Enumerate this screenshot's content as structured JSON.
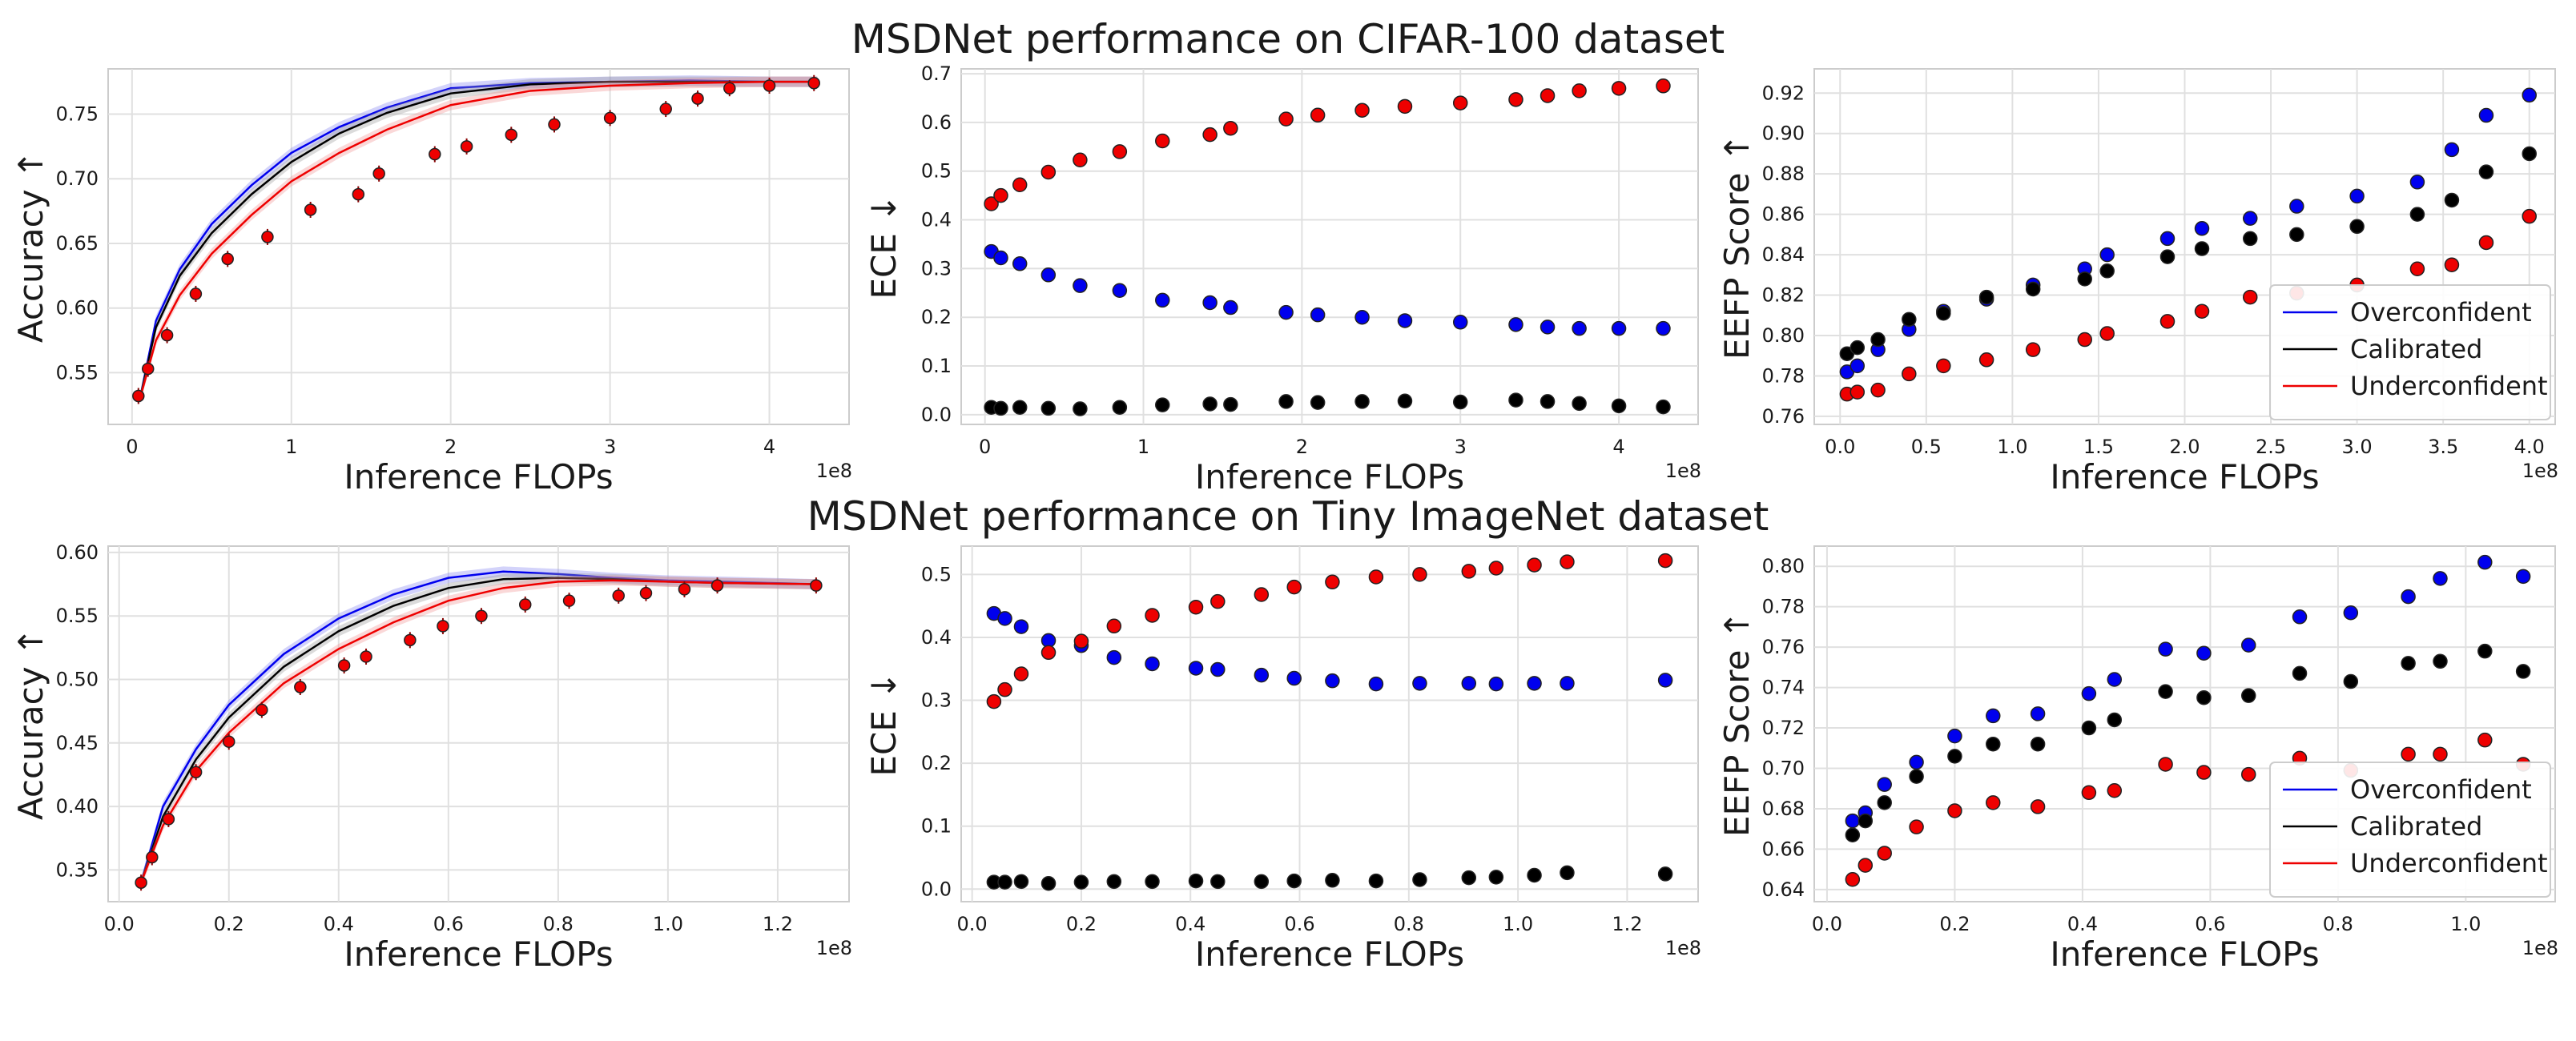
{
  "titles": {
    "row1": "MSDNet performance on CIFAR-100 dataset",
    "row2": "MSDNet performance on Tiny ImageNet dataset"
  },
  "legend": [
    "Overconfident",
    "Calibrated",
    "Underconfident"
  ],
  "colors": {
    "overconfident": "#0000ee",
    "calibrated": "#000000",
    "underconfident": "#ee0000",
    "grid": "#e0e0e0",
    "band_blue": "#8080f0",
    "band_red": "#f09090"
  },
  "chart_data": [
    {
      "id": "cifar_acc",
      "type": "line+scatter",
      "title": "",
      "xlabel": "Inference FLOPs",
      "ylabel": "Accuracy ↑",
      "x_offset_label": "1e8",
      "xlim": [
        -0.15,
        4.5
      ],
      "ylim": [
        0.51,
        0.785
      ],
      "xticks": [
        0,
        1,
        2,
        3,
        4
      ],
      "xtick_labels": [
        "0",
        "1",
        "2",
        "3",
        "4"
      ],
      "yticks": [
        0.55,
        0.6,
        0.65,
        0.7,
        0.75
      ],
      "ytick_labels": [
        "0.55",
        "0.60",
        "0.65",
        "0.70",
        "0.75"
      ],
      "lines": [
        {
          "name": "Overconfident",
          "x": [
            0.05,
            0.15,
            0.3,
            0.5,
            0.75,
            1.0,
            1.3,
            1.6,
            2.0,
            2.5,
            3.0,
            3.5,
            4.0,
            4.3
          ],
          "y": [
            0.53,
            0.59,
            0.63,
            0.665,
            0.695,
            0.72,
            0.74,
            0.755,
            0.77,
            0.774,
            0.775,
            0.776,
            0.775,
            0.775
          ]
        },
        {
          "name": "Calibrated",
          "x": [
            0.05,
            0.15,
            0.3,
            0.5,
            0.75,
            1.0,
            1.3,
            1.6,
            2.0,
            2.5,
            3.0,
            3.5,
            4.0,
            4.3
          ],
          "y": [
            0.53,
            0.585,
            0.625,
            0.658,
            0.688,
            0.713,
            0.735,
            0.751,
            0.766,
            0.773,
            0.775,
            0.775,
            0.775,
            0.775
          ]
        },
        {
          "name": "Underconfident",
          "x": [
            0.05,
            0.15,
            0.3,
            0.5,
            0.75,
            1.0,
            1.3,
            1.6,
            2.0,
            2.5,
            3.0,
            3.5,
            4.0,
            4.3
          ],
          "y": [
            0.53,
            0.575,
            0.61,
            0.642,
            0.672,
            0.698,
            0.72,
            0.738,
            0.757,
            0.768,
            0.772,
            0.774,
            0.775,
            0.775
          ]
        }
      ],
      "points": {
        "name": "Underconfident",
        "x": [
          0.04,
          0.1,
          0.22,
          0.4,
          0.6,
          0.85,
          1.12,
          1.42,
          1.55,
          1.9,
          2.1,
          2.38,
          2.65,
          3.0,
          3.35,
          3.55,
          3.75,
          4.0,
          4.28
        ],
        "y": [
          0.532,
          0.553,
          0.579,
          0.611,
          0.638,
          0.655,
          0.676,
          0.688,
          0.704,
          0.719,
          0.725,
          0.734,
          0.742,
          0.747,
          0.754,
          0.762,
          0.77,
          0.772,
          0.774
        ]
      }
    },
    {
      "id": "cifar_ece",
      "type": "scatter",
      "title": "",
      "xlabel": "Inference FLOPs",
      "ylabel": "ECE ↓",
      "x_offset_label": "1e8",
      "xlim": [
        -0.15,
        4.5
      ],
      "ylim": [
        -0.02,
        0.71
      ],
      "xticks": [
        0,
        1,
        2,
        3,
        4
      ],
      "xtick_labels": [
        "0",
        "1",
        "2",
        "3",
        "4"
      ],
      "yticks": [
        0,
        0.1,
        0.2,
        0.3,
        0.4,
        0.5,
        0.6,
        0.7
      ],
      "ytick_labels": [
        "0.0",
        "0.1",
        "0.2",
        "0.3",
        "0.4",
        "0.5",
        "0.6",
        "0.7"
      ],
      "series": [
        {
          "name": "Overconfident",
          "x": [
            0.04,
            0.1,
            0.22,
            0.4,
            0.6,
            0.85,
            1.12,
            1.42,
            1.55,
            1.9,
            2.1,
            2.38,
            2.65,
            3.0,
            3.35,
            3.55,
            3.75,
            4.0,
            4.28
          ],
          "y": [
            0.335,
            0.322,
            0.31,
            0.287,
            0.265,
            0.255,
            0.235,
            0.23,
            0.22,
            0.21,
            0.205,
            0.2,
            0.193,
            0.19,
            0.185,
            0.18,
            0.177,
            0.177,
            0.177
          ]
        },
        {
          "name": "Calibrated",
          "x": [
            0.04,
            0.1,
            0.22,
            0.4,
            0.6,
            0.85,
            1.12,
            1.42,
            1.55,
            1.9,
            2.1,
            2.38,
            2.65,
            3.0,
            3.35,
            3.55,
            3.75,
            4.0,
            4.28
          ],
          "y": [
            0.015,
            0.013,
            0.015,
            0.013,
            0.012,
            0.015,
            0.02,
            0.022,
            0.021,
            0.027,
            0.025,
            0.027,
            0.028,
            0.026,
            0.03,
            0.027,
            0.023,
            0.018,
            0.016
          ]
        },
        {
          "name": "Underconfident",
          "x": [
            0.04,
            0.1,
            0.22,
            0.4,
            0.6,
            0.85,
            1.12,
            1.42,
            1.55,
            1.9,
            2.1,
            2.38,
            2.65,
            3.0,
            3.35,
            3.55,
            3.75,
            4.0,
            4.28
          ],
          "y": [
            0.433,
            0.45,
            0.472,
            0.498,
            0.523,
            0.54,
            0.562,
            0.575,
            0.588,
            0.607,
            0.615,
            0.625,
            0.633,
            0.64,
            0.647,
            0.655,
            0.665,
            0.67,
            0.675
          ]
        }
      ]
    },
    {
      "id": "cifar_eefp",
      "type": "scatter",
      "title": "",
      "xlabel": "Inference FLOPs",
      "ylabel": "EEFP Score ↑",
      "x_offset_label": "1e8",
      "xlim": [
        -0.15,
        4.15
      ],
      "ylim": [
        0.756,
        0.932
      ],
      "xticks": [
        0,
        0.5,
        1,
        1.5,
        2,
        2.5,
        3,
        3.5,
        4
      ],
      "xtick_labels": [
        "0.0",
        "0.5",
        "1.0",
        "1.5",
        "2.0",
        "2.5",
        "3.0",
        "3.5",
        "4.0"
      ],
      "yticks": [
        0.76,
        0.78,
        0.8,
        0.82,
        0.84,
        0.86,
        0.88,
        0.9,
        0.92
      ],
      "ytick_labels": [
        "0.76",
        "0.78",
        "0.80",
        "0.82",
        "0.84",
        "0.86",
        "0.88",
        "0.90",
        "0.92"
      ],
      "legend": true,
      "series": [
        {
          "name": "Overconfident",
          "x": [
            0.04,
            0.1,
            0.22,
            0.4,
            0.6,
            0.85,
            1.12,
            1.42,
            1.55,
            1.9,
            2.1,
            2.38,
            2.65,
            3.0,
            3.35,
            3.55,
            3.75,
            4.0
          ],
          "y": [
            0.782,
            0.785,
            0.793,
            0.803,
            0.812,
            0.818,
            0.825,
            0.833,
            0.84,
            0.848,
            0.853,
            0.858,
            0.864,
            0.869,
            0.876,
            0.892,
            0.909,
            0.919
          ]
        },
        {
          "name": "Calibrated",
          "x": [
            0.04,
            0.1,
            0.22,
            0.4,
            0.6,
            0.85,
            1.12,
            1.42,
            1.55,
            1.9,
            2.1,
            2.38,
            2.65,
            3.0,
            3.35,
            3.55,
            3.75,
            4.0
          ],
          "y": [
            0.791,
            0.794,
            0.798,
            0.808,
            0.811,
            0.819,
            0.823,
            0.828,
            0.832,
            0.839,
            0.843,
            0.848,
            0.85,
            0.854,
            0.86,
            0.867,
            0.881,
            0.89
          ]
        },
        {
          "name": "Underconfident",
          "x": [
            0.04,
            0.1,
            0.22,
            0.4,
            0.6,
            0.85,
            1.12,
            1.42,
            1.55,
            1.9,
            2.1,
            2.38,
            2.65,
            3.0,
            3.35,
            3.55,
            3.75,
            4.0
          ],
          "y": [
            0.771,
            0.772,
            0.773,
            0.781,
            0.785,
            0.788,
            0.793,
            0.798,
            0.801,
            0.807,
            0.812,
            0.819,
            0.821,
            0.825,
            0.833,
            0.835,
            0.846,
            0.859
          ]
        }
      ]
    },
    {
      "id": "tiny_acc",
      "type": "line+scatter",
      "title": "",
      "xlabel": "Inference FLOPs",
      "ylabel": "Accuracy ↑",
      "x_offset_label": "1e8",
      "xlim": [
        -0.02,
        1.33
      ],
      "ylim": [
        0.325,
        0.605
      ],
      "xticks": [
        0,
        0.2,
        0.4,
        0.6,
        0.8,
        1.0,
        1.2
      ],
      "xtick_labels": [
        "0.0",
        "0.2",
        "0.4",
        "0.6",
        "0.8",
        "1.0",
        "1.2"
      ],
      "yticks": [
        0.35,
        0.4,
        0.45,
        0.5,
        0.55,
        0.6
      ],
      "ytick_labels": [
        "0.35",
        "0.40",
        "0.45",
        "0.50",
        "0.55",
        "0.60"
      ],
      "lines": [
        {
          "name": "Overconfident",
          "x": [
            0.04,
            0.08,
            0.14,
            0.2,
            0.3,
            0.4,
            0.5,
            0.6,
            0.7,
            0.8,
            0.9,
            1.0,
            1.1,
            1.27
          ],
          "y": [
            0.34,
            0.4,
            0.445,
            0.48,
            0.52,
            0.548,
            0.567,
            0.58,
            0.585,
            0.583,
            0.58,
            0.578,
            0.577,
            0.575
          ]
        },
        {
          "name": "Calibrated",
          "x": [
            0.04,
            0.08,
            0.14,
            0.2,
            0.3,
            0.4,
            0.5,
            0.6,
            0.7,
            0.8,
            0.9,
            1.0,
            1.1,
            1.27
          ],
          "y": [
            0.34,
            0.392,
            0.437,
            0.47,
            0.51,
            0.538,
            0.558,
            0.572,
            0.579,
            0.58,
            0.579,
            0.577,
            0.576,
            0.575
          ]
        },
        {
          "name": "Underconfident",
          "x": [
            0.04,
            0.08,
            0.14,
            0.2,
            0.3,
            0.4,
            0.5,
            0.6,
            0.7,
            0.8,
            0.9,
            1.0,
            1.1,
            1.27
          ],
          "y": [
            0.34,
            0.385,
            0.428,
            0.458,
            0.497,
            0.524,
            0.545,
            0.562,
            0.572,
            0.577,
            0.578,
            0.577,
            0.576,
            0.575
          ]
        }
      ],
      "points": {
        "name": "Underconfident",
        "x": [
          0.04,
          0.06,
          0.09,
          0.14,
          0.2,
          0.26,
          0.33,
          0.41,
          0.45,
          0.53,
          0.59,
          0.66,
          0.74,
          0.82,
          0.91,
          0.96,
          1.03,
          1.09,
          1.27
        ],
        "y": [
          0.34,
          0.36,
          0.39,
          0.427,
          0.451,
          0.476,
          0.494,
          0.511,
          0.518,
          0.531,
          0.542,
          0.55,
          0.559,
          0.562,
          0.566,
          0.568,
          0.571,
          0.574,
          0.574
        ]
      }
    },
    {
      "id": "tiny_ece",
      "type": "scatter",
      "title": "",
      "xlabel": "Inference FLOPs",
      "ylabel": "ECE ↓",
      "x_offset_label": "1e8",
      "xlim": [
        -0.02,
        1.33
      ],
      "ylim": [
        -0.02,
        0.545
      ],
      "xticks": [
        0,
        0.2,
        0.4,
        0.6,
        0.8,
        1.0,
        1.2
      ],
      "xtick_labels": [
        "0.0",
        "0.2",
        "0.4",
        "0.6",
        "0.8",
        "1.0",
        "1.2"
      ],
      "yticks": [
        0,
        0.1,
        0.2,
        0.3,
        0.4,
        0.5
      ],
      "ytick_labels": [
        "0.0",
        "0.1",
        "0.2",
        "0.3",
        "0.4",
        "0.5"
      ],
      "series": [
        {
          "name": "Overconfident",
          "x": [
            0.04,
            0.06,
            0.09,
            0.14,
            0.2,
            0.26,
            0.33,
            0.41,
            0.45,
            0.53,
            0.59,
            0.66,
            0.74,
            0.82,
            0.91,
            0.96,
            1.03,
            1.09,
            1.27
          ],
          "y": [
            0.438,
            0.43,
            0.417,
            0.395,
            0.387,
            0.368,
            0.358,
            0.351,
            0.349,
            0.34,
            0.335,
            0.331,
            0.326,
            0.327,
            0.327,
            0.326,
            0.327,
            0.327,
            0.332
          ]
        },
        {
          "name": "Calibrated",
          "x": [
            0.04,
            0.06,
            0.09,
            0.14,
            0.2,
            0.26,
            0.33,
            0.41,
            0.45,
            0.53,
            0.59,
            0.66,
            0.74,
            0.82,
            0.91,
            0.96,
            1.03,
            1.09,
            1.27
          ],
          "y": [
            0.011,
            0.011,
            0.012,
            0.009,
            0.011,
            0.012,
            0.012,
            0.013,
            0.012,
            0.012,
            0.013,
            0.014,
            0.013,
            0.015,
            0.018,
            0.019,
            0.022,
            0.026,
            0.024
          ]
        },
        {
          "name": "Underconfident",
          "x": [
            0.04,
            0.06,
            0.09,
            0.14,
            0.2,
            0.26,
            0.33,
            0.41,
            0.45,
            0.53,
            0.59,
            0.66,
            0.74,
            0.82,
            0.91,
            0.96,
            1.03,
            1.09,
            1.27
          ],
          "y": [
            0.298,
            0.317,
            0.342,
            0.376,
            0.394,
            0.418,
            0.435,
            0.448,
            0.457,
            0.468,
            0.48,
            0.488,
            0.496,
            0.5,
            0.505,
            0.51,
            0.515,
            0.52,
            0.522
          ]
        }
      ]
    },
    {
      "id": "tiny_eefp",
      "type": "scatter",
      "title": "",
      "xlabel": "Inference FLOPs",
      "ylabel": "EEFP Score ↑",
      "x_offset_label": "1e8",
      "xlim": [
        -0.02,
        1.14
      ],
      "ylim": [
        0.634,
        0.81
      ],
      "xticks": [
        0,
        0.2,
        0.4,
        0.6,
        0.8,
        1.0
      ],
      "xtick_labels": [
        "0.0",
        "0.2",
        "0.4",
        "0.6",
        "0.8",
        "1.0"
      ],
      "yticks": [
        0.64,
        0.66,
        0.68,
        0.7,
        0.72,
        0.74,
        0.76,
        0.78,
        0.8
      ],
      "ytick_labels": [
        "0.64",
        "0.66",
        "0.68",
        "0.70",
        "0.72",
        "0.74",
        "0.76",
        "0.78",
        "0.80"
      ],
      "legend": true,
      "series": [
        {
          "name": "Overconfident",
          "x": [
            0.04,
            0.06,
            0.09,
            0.14,
            0.2,
            0.26,
            0.33,
            0.41,
            0.45,
            0.53,
            0.59,
            0.66,
            0.74,
            0.82,
            0.91,
            0.96,
            1.03,
            1.09
          ],
          "y": [
            0.674,
            0.678,
            0.692,
            0.703,
            0.716,
            0.726,
            0.727,
            0.737,
            0.744,
            0.759,
            0.757,
            0.761,
            0.775,
            0.777,
            0.785,
            0.794,
            0.802,
            0.795
          ]
        },
        {
          "name": "Calibrated",
          "x": [
            0.04,
            0.06,
            0.09,
            0.14,
            0.2,
            0.26,
            0.33,
            0.41,
            0.45,
            0.53,
            0.59,
            0.66,
            0.74,
            0.82,
            0.91,
            0.96,
            1.03,
            1.09
          ],
          "y": [
            0.667,
            0.674,
            0.683,
            0.696,
            0.706,
            0.712,
            0.712,
            0.72,
            0.724,
            0.738,
            0.735,
            0.736,
            0.747,
            0.743,
            0.752,
            0.753,
            0.758,
            0.748
          ]
        },
        {
          "name": "Underconfident",
          "x": [
            0.04,
            0.06,
            0.09,
            0.14,
            0.2,
            0.26,
            0.33,
            0.41,
            0.45,
            0.53,
            0.59,
            0.66,
            0.74,
            0.82,
            0.91,
            0.96,
            1.03,
            1.09
          ],
          "y": [
            0.645,
            0.652,
            0.658,
            0.671,
            0.679,
            0.683,
            0.681,
            0.688,
            0.689,
            0.702,
            0.698,
            0.697,
            0.705,
            0.699,
            0.707,
            0.707,
            0.714,
            0.702
          ]
        }
      ]
    }
  ]
}
